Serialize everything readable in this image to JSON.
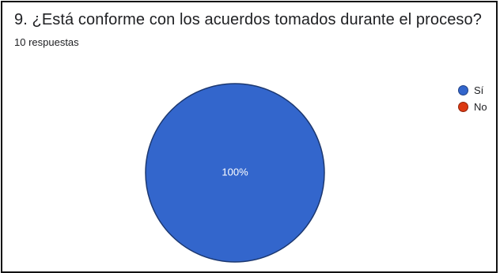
{
  "card": {
    "title": "9. ¿Está conforme con los acuerdos tomados durante el proceso?",
    "response_count": "10 respuestas"
  },
  "chart_data": {
    "type": "pie",
    "title": "9. ¿Está conforme con los acuerdos tomados durante el proceso?",
    "subtitle": "10 respuestas",
    "categories": [
      "Sí",
      "No"
    ],
    "values": [
      100,
      0
    ],
    "slice_labels": [
      "100%",
      ""
    ],
    "colors": [
      "#3366cc",
      "#dc3912"
    ],
    "legend_position": "right"
  },
  "legend": [
    {
      "label": "Sí",
      "color": "#3366cc"
    },
    {
      "label": "No",
      "color": "#dc3912"
    }
  ]
}
